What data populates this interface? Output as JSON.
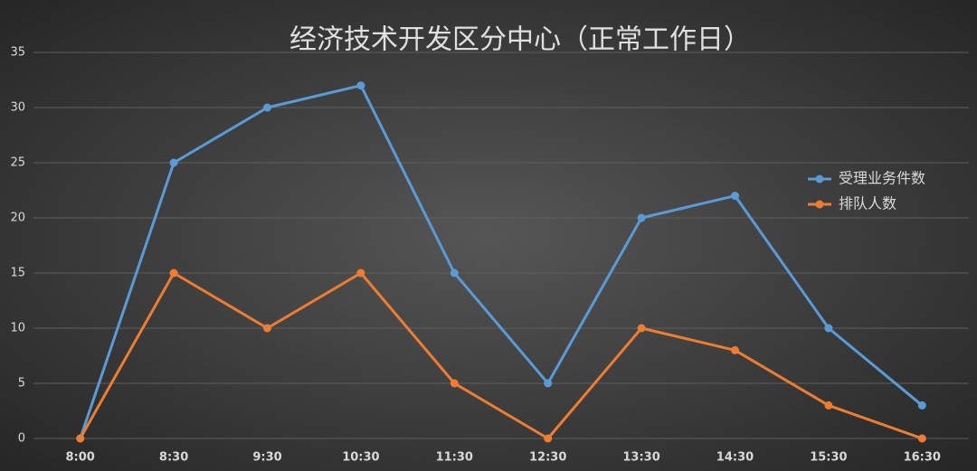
{
  "chart_data": {
    "type": "line",
    "title": "经济技术开发区分中心（正常工作日）",
    "categories": [
      "8:00",
      "8:30",
      "9:30",
      "10:30",
      "11:30",
      "12:30",
      "13:30",
      "14:30",
      "15:30",
      "16:30"
    ],
    "series": [
      {
        "name": "受理业务件数",
        "color": "#5b9bd5",
        "values": [
          0,
          25,
          30,
          32,
          15,
          5,
          20,
          22,
          10,
          3
        ]
      },
      {
        "name": "排队人数",
        "color": "#ed7d31",
        "values": [
          0,
          15,
          10,
          15,
          5,
          0,
          10,
          8,
          3,
          0
        ]
      }
    ],
    "ylim": [
      0,
      35
    ],
    "yticks": [
      0,
      5,
      10,
      15,
      20,
      25,
      30,
      35
    ],
    "grid": true,
    "legend": "right"
  }
}
